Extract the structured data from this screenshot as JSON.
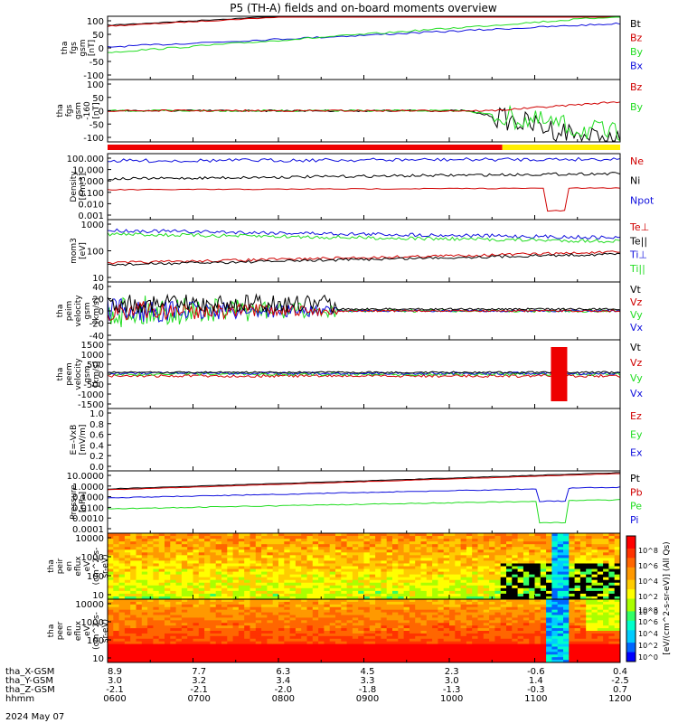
{
  "title": "P5 (TH-A) fields and on-board moments overview",
  "colors": {
    "black": "#000000",
    "red": "#d00000",
    "green": "#22dd22",
    "blue": "#1010dd",
    "yellow": "#ffee00"
  },
  "chart_data": [
    {
      "type": "line",
      "ylabel": [
        "tha",
        "fgs",
        "gsm",
        "[nT]"
      ],
      "yticks": [
        "100",
        "50",
        "0",
        "-50",
        "-100"
      ],
      "ylim": [
        -100,
        100
      ],
      "legend": [
        {
          "name": "Bt",
          "color": "black"
        },
        {
          "name": "Bz",
          "color": "red"
        },
        {
          "name": "By",
          "color": "green"
        },
        {
          "name": "Bx",
          "color": "blue"
        }
      ]
    },
    {
      "type": "line",
      "ylabel": [
        "tha",
        "fgs",
        "gsm",
        "-160",
        "[nT]"
      ],
      "yticks": [
        "100",
        "50",
        "0",
        "-50",
        "-100"
      ],
      "ylim": [
        -130,
        130
      ],
      "legend": [
        {
          "name": "Bz",
          "color": "red"
        },
        {
          "name": "By",
          "color": "green"
        }
      ]
    },
    {
      "type": "line",
      "ylabel": [
        "Density",
        "[cm-3]"
      ],
      "yticks": [
        "100.000",
        "10.000",
        "1.000",
        "0.100",
        "0.010",
        "0.001"
      ],
      "scale": "log",
      "legend": [
        {
          "name": "Ne",
          "color": "red"
        },
        {
          "name": "Ni",
          "color": "black"
        },
        {
          "name": "Npot",
          "color": "blue"
        }
      ]
    },
    {
      "type": "line",
      "ylabel": [
        "mom3",
        "[eV]"
      ],
      "yticks": [
        "1000",
        "100",
        "10"
      ],
      "scale": "log",
      "legend": [
        {
          "name": "Te⊥",
          "color": "red"
        },
        {
          "name": "Te||",
          "color": "black"
        },
        {
          "name": "Ti⊥",
          "color": "blue"
        },
        {
          "name": "Ti||",
          "color": "green"
        }
      ]
    },
    {
      "type": "line",
      "ylabel": [
        "tha",
        "peim",
        "velocity",
        "gsm",
        "[km/s]"
      ],
      "yticks": [
        "40",
        "20",
        "0",
        "-20",
        "-40"
      ],
      "ylim": [
        -40,
        45
      ],
      "legend": [
        {
          "name": "Vt",
          "color": "black"
        },
        {
          "name": "Vz",
          "color": "red"
        },
        {
          "name": "Vy",
          "color": "green"
        },
        {
          "name": "Vx",
          "color": "blue"
        }
      ]
    },
    {
      "type": "line",
      "ylabel": [
        "tha",
        "peem",
        "velocity",
        "gsm",
        "[km/s]"
      ],
      "yticks": [
        "1500",
        "1000",
        "500",
        "0",
        "-500",
        "-1000",
        "-1500"
      ],
      "ylim": [
        -1500,
        1500
      ],
      "legend": [
        {
          "name": "Vt",
          "color": "black"
        },
        {
          "name": "Vz",
          "color": "red"
        },
        {
          "name": "Vy",
          "color": "green"
        },
        {
          "name": "Vx",
          "color": "blue"
        }
      ]
    },
    {
      "type": "line",
      "ylabel": [
        "E=-VxB",
        "[mV/m]"
      ],
      "yticks": [
        "1.0",
        "0.8",
        "0.6",
        "0.4",
        "0.2",
        "0.0"
      ],
      "ylim": [
        0,
        1
      ],
      "legend": [
        {
          "name": "Ez",
          "color": "red"
        },
        {
          "name": "Ey",
          "color": "green"
        },
        {
          "name": "Ex",
          "color": "blue"
        }
      ]
    },
    {
      "type": "line",
      "ylabel": [
        "Pressure",
        "[nPa]"
      ],
      "yticks": [
        "10.0000",
        "1.0000",
        "0.1000",
        "0.0100",
        "0.0010",
        "0.0001"
      ],
      "scale": "log",
      "legend": [
        {
          "name": "Pt",
          "color": "black"
        },
        {
          "name": "Pb",
          "color": "red"
        },
        {
          "name": "Pe",
          "color": "green"
        },
        {
          "name": "Pi",
          "color": "blue"
        }
      ]
    },
    {
      "type": "heatmap",
      "ylabel": [
        "tha",
        "peir",
        "en",
        "eflux",
        "eV",
        "(cm^2-s-",
        "sr-eV)"
      ],
      "yticks": [
        "10000",
        "1000",
        "100",
        "10"
      ],
      "scale": "log"
    },
    {
      "type": "heatmap",
      "ylabel": [
        "tha",
        "peer",
        "en",
        "eflux",
        "eV",
        "(cm^2-s-",
        "sr-eV)"
      ],
      "yticks": [
        "10000",
        "1000",
        "100",
        "10"
      ],
      "scale": "log"
    }
  ],
  "colorbar": {
    "label": "[eV/(cm^2-s-sr-eV)] (All Qs)",
    "tick_labels": [
      "10^8",
      "10^6",
      "10^4",
      "10^2",
      "10^0"
    ],
    "tick_labels_lower": [
      "10^8",
      "10^6",
      "10^4",
      "10^2",
      "10^0"
    ]
  },
  "x_axis": {
    "rows": [
      {
        "label": "tha_X-GSM",
        "values": [
          "8.9",
          "7.7",
          "6.3",
          "4.5",
          "2.3",
          "-0.6",
          "0.4"
        ]
      },
      {
        "label": "tha_Y-GSM",
        "values": [
          "3.0",
          "3.2",
          "3.4",
          "3.3",
          "3.0",
          "1.4",
          "-2.5"
        ]
      },
      {
        "label": "tha_Z-GSM",
        "values": [
          "-2.1",
          "-2.1",
          "-2.0",
          "-1.8",
          "-1.3",
          "-0.3",
          "0.7"
        ]
      },
      {
        "label": "hhmm",
        "values": [
          "0600",
          "0700",
          "0800",
          "0900",
          "1000",
          "1100",
          "1200"
        ]
      }
    ],
    "date": "2024 May 07"
  }
}
